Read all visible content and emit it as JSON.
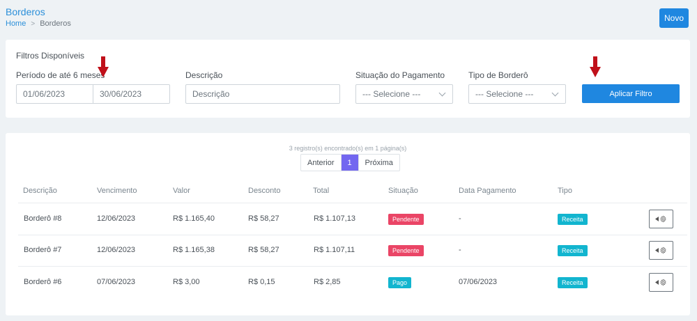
{
  "header": {
    "title": "Borderos",
    "breadcrumb": {
      "home": "Home",
      "separator": ">",
      "current": "Borderos"
    },
    "new_button": "Novo"
  },
  "filters": {
    "title": "Filtros Disponíveis",
    "period": {
      "label": "Período de até 6 meses",
      "start": "01/06/2023",
      "end": "30/06/2023"
    },
    "description": {
      "label": "Descrição",
      "placeholder": "Descrição",
      "value": ""
    },
    "payment_status": {
      "label": "Situação do Pagamento",
      "selected": "--- Selecione ---"
    },
    "bordero_type": {
      "label": "Tipo de Borderô",
      "selected": "--- Selecione ---"
    },
    "apply_button": "Aplicar Filtro"
  },
  "results": {
    "records_info": "3 registro(s) encontrado(s) em 1 página(s)",
    "pagination": {
      "prev": "Anterior",
      "current": "1",
      "next": "Próxima"
    },
    "columns": [
      "Descrição",
      "Vencimento",
      "Valor",
      "Desconto",
      "Total",
      "Situação",
      "Data Pagamento",
      "Tipo"
    ],
    "rows": [
      {
        "descricao": "Borderô #8",
        "vencimento": "12/06/2023",
        "valor": "R$ 1.165,40",
        "desconto": "R$ 58,27",
        "total": "R$ 1.107,13",
        "situacao": "Pendente",
        "data_pagamento": "-",
        "tipo": "Receita"
      },
      {
        "descricao": "Borderô #7",
        "vencimento": "12/06/2023",
        "valor": "R$ 1.165,38",
        "desconto": "R$ 58,27",
        "total": "R$ 1.107,11",
        "situacao": "Pendente",
        "data_pagamento": "-",
        "tipo": "Receita"
      },
      {
        "descricao": "Borderô #6",
        "vencimento": "07/06/2023",
        "valor": "R$ 3,00",
        "desconto": "R$ 0,15",
        "total": "R$ 2,85",
        "situacao": "Pago",
        "data_pagamento": "07/06/2023",
        "tipo": "Receita"
      }
    ]
  },
  "colors": {
    "primary": "#1f87e0",
    "pagination_active": "#7367f0",
    "badge_pending": "#ea4566",
    "badge_paid": "#12b5cf",
    "annotation_arrow": "#c0101a"
  },
  "icons": {
    "breadcrumb_separator": "chevron-right-icon",
    "select_caret": "chevron-down-icon",
    "row_action": "gear-icon",
    "annotation": "arrow-down-icon"
  }
}
